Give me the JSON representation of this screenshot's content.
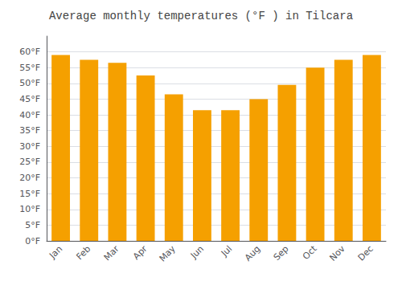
{
  "chart_data": {
    "type": "bar",
    "title": "Average monthly temperatures (°F ) in Tilcara",
    "categories": [
      "Jan",
      "Feb",
      "Mar",
      "Apr",
      "May",
      "Jun",
      "Jul",
      "Aug",
      "Sep",
      "Oct",
      "Nov",
      "Dec"
    ],
    "values": [
      59,
      57.5,
      56.5,
      52.5,
      46.5,
      41.5,
      41.5,
      45,
      49.5,
      55,
      57.5,
      59
    ],
    "color": "#F5A000",
    "ylim": [
      0,
      65
    ],
    "yticks": [
      {
        "value": 0,
        "label": "0°F"
      },
      {
        "value": 5,
        "label": "5°F"
      },
      {
        "value": 10,
        "label": "10°F"
      },
      {
        "value": 15,
        "label": "15°F"
      },
      {
        "value": 20,
        "label": "20°F"
      },
      {
        "value": 25,
        "label": "25°F"
      },
      {
        "value": 30,
        "label": "30°F"
      },
      {
        "value": 35,
        "label": "35°F"
      },
      {
        "value": 40,
        "label": "40°F"
      },
      {
        "value": 45,
        "label": "45°F"
      },
      {
        "value": 50,
        "label": "50°F"
      },
      {
        "value": 55,
        "label": "55°F"
      },
      {
        "value": 60,
        "label": "60°F"
      }
    ],
    "grid": true
  }
}
